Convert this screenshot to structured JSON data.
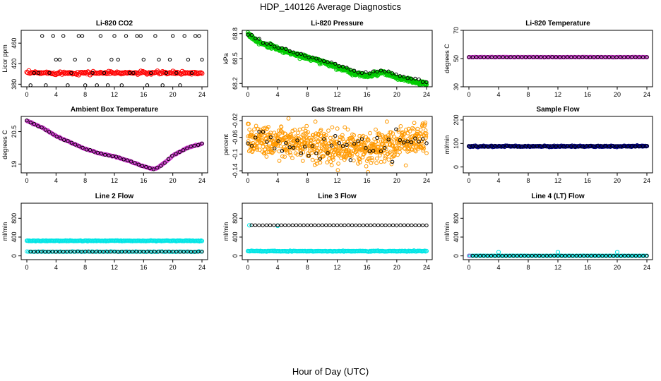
{
  "figure": {
    "title": "HDP_140126  Average Diagnostics",
    "xlabel": "Hour of Day (UTC)"
  },
  "colors": {
    "black": "#000000",
    "red": "#ff0000",
    "green": "#00cc00",
    "magenta": "#cc33cc",
    "orange": "#ff9900",
    "navy": "#000080",
    "cyan": "#00e5e5"
  },
  "chart_data": [
    {
      "type": "scatter",
      "title": "Li-820 CO2",
      "ylabel": "Licor ppm",
      "xlim": [
        0,
        24
      ],
      "ylim": [
        375,
        485
      ],
      "xticks": [
        0,
        4,
        8,
        12,
        16,
        20,
        24
      ],
      "yticks": [
        380,
        420,
        460
      ],
      "series": [
        {
          "color": "#ff0000",
          "pattern": "noisy",
          "x": [
            0,
            24
          ],
          "y": [
            402,
            402
          ],
          "n": 170,
          "noise": 1.5,
          "size": 3
        },
        {
          "color": "#000000",
          "pattern": "points",
          "x": [
            0.5,
            1.0,
            1.6,
            2.1,
            2.6,
            3.1,
            3.6,
            4.0,
            4.5,
            5.0,
            5.6,
            6.1,
            6.6,
            7.1,
            7.6,
            8.0,
            8.5,
            9.0,
            9.6,
            10.1,
            10.6,
            11.1,
            11.6,
            12.0,
            12.5,
            13.0,
            13.6,
            14.1,
            14.6,
            15.1,
            15.6,
            16.0,
            16.5,
            17.0,
            17.6,
            18.1,
            18.6,
            19.1,
            19.6,
            20.0,
            20.5,
            21.0,
            21.6,
            22.1,
            22.6,
            23.1,
            23.6,
            24.0
          ],
          "y": [
            378,
            402,
            402,
            474,
            378,
            402,
            474,
            428,
            428,
            474,
            378,
            402,
            428,
            474,
            474,
            378,
            428,
            402,
            378,
            474,
            402,
            378,
            428,
            474,
            428,
            378,
            474,
            402,
            402,
            474,
            474,
            428,
            378,
            402,
            474,
            428,
            378,
            402,
            428,
            474,
            402,
            378,
            474,
            428,
            402,
            474,
            474,
            428
          ],
          "size": 2.2
        }
      ]
    },
    {
      "type": "scatter",
      "title": "Li-820 Pressure",
      "ylabel": "kPa",
      "xlim": [
        0,
        24
      ],
      "ylim": [
        68.16,
        68.84
      ],
      "xticks": [
        0,
        4,
        8,
        12,
        16,
        20,
        24
      ],
      "yticks": [
        68.2,
        68.5,
        68.8
      ],
      "series": [
        {
          "color": "#00cc00",
          "pattern": "noisy",
          "x": [
            0,
            1,
            2,
            4,
            6,
            8,
            10,
            12,
            14,
            15,
            16,
            17,
            18,
            19,
            20,
            22,
            24
          ],
          "y": [
            68.8,
            68.73,
            68.68,
            68.62,
            68.56,
            68.51,
            68.46,
            68.4,
            68.33,
            68.31,
            68.29,
            68.31,
            68.33,
            68.31,
            68.27,
            68.23,
            68.19
          ],
          "n": 500,
          "noise": 0.012,
          "size": 2.6
        },
        {
          "color": "#000000",
          "pattern": "noisy",
          "x": [
            0,
            1,
            2,
            4,
            6,
            8,
            10,
            12,
            14,
            15,
            16,
            17,
            18,
            19,
            20,
            22,
            24
          ],
          "y": [
            68.8,
            68.74,
            68.7,
            68.64,
            68.58,
            68.53,
            68.48,
            68.42,
            68.36,
            68.33,
            68.32,
            68.34,
            68.35,
            68.33,
            68.3,
            68.26,
            68.22
          ],
          "n": 48,
          "noise": 0.008,
          "size": 2.2
        }
      ]
    },
    {
      "type": "scatter",
      "title": "Li-820 Temperature",
      "ylabel": "degrees C",
      "xlim": [
        0,
        24
      ],
      "ylim": [
        30,
        70
      ],
      "xticks": [
        0,
        4,
        8,
        12,
        16,
        20,
        24
      ],
      "yticks": [
        30,
        50,
        70
      ],
      "series": [
        {
          "color": "#cc33cc",
          "pattern": "noisy",
          "x": [
            0,
            24
          ],
          "y": [
            51,
            51
          ],
          "n": 160,
          "noise": 0.05,
          "size": 2.6
        },
        {
          "color": "#000000",
          "pattern": "noisy",
          "x": [
            0,
            24
          ],
          "y": [
            51,
            51
          ],
          "n": 48,
          "noise": 0.05,
          "size": 2.2
        }
      ]
    },
    {
      "type": "scatter",
      "title": "Ambient Box Temperature",
      "ylabel": "degrees C",
      "xlim": [
        0,
        24
      ],
      "ylim": [
        18.6,
        21.2
      ],
      "xticks": [
        0,
        4,
        8,
        12,
        16,
        20,
        24
      ],
      "yticks": [
        19.0,
        20.5
      ],
      "series": [
        {
          "color": "#cc33cc",
          "pattern": "noisy",
          "x": [
            0,
            2,
            4,
            6,
            8,
            10,
            12,
            14,
            16,
            17,
            17.5,
            18,
            19,
            20,
            22,
            24
          ],
          "y": [
            21.0,
            20.7,
            20.3,
            20.0,
            19.7,
            19.5,
            19.35,
            19.15,
            18.9,
            18.8,
            18.78,
            18.85,
            19.1,
            19.4,
            19.75,
            19.95
          ],
          "n": 200,
          "noise": 0.01,
          "size": 2.6
        },
        {
          "color": "#000000",
          "pattern": "noisy",
          "x": [
            0,
            2,
            4,
            6,
            8,
            10,
            12,
            14,
            16,
            17,
            17.5,
            18,
            19,
            20,
            22,
            24
          ],
          "y": [
            21.0,
            20.7,
            20.3,
            20.0,
            19.7,
            19.5,
            19.35,
            19.15,
            18.9,
            18.8,
            18.78,
            18.85,
            19.1,
            19.4,
            19.75,
            19.95
          ],
          "n": 48,
          "noise": 0.01,
          "size": 2.2
        }
      ]
    },
    {
      "type": "scatter",
      "title": "Gas Stream RH",
      "ylabel": "percent",
      "xlim": [
        0,
        24
      ],
      "ylim": [
        -0.145,
        -0.01
      ],
      "xticks": [
        0,
        4,
        8,
        12,
        16,
        20,
        24
      ],
      "yticks": [
        -0.14,
        -0.1,
        -0.06,
        -0.02
      ],
      "series": [
        {
          "color": "#ff9900",
          "pattern": "noisy",
          "x": [
            0,
            4,
            8,
            12,
            16,
            20,
            24
          ],
          "y": [
            -0.06,
            -0.07,
            -0.08,
            -0.085,
            -0.09,
            -0.075,
            -0.06
          ],
          "n": 700,
          "noise": 0.02,
          "size": 2.4
        },
        {
          "color": "#000000",
          "pattern": "noisy",
          "x": [
            0,
            4,
            8,
            12,
            16,
            20,
            24
          ],
          "y": [
            -0.07,
            -0.075,
            -0.085,
            -0.085,
            -0.085,
            -0.075,
            -0.065
          ],
          "n": 48,
          "noise": 0.015,
          "size": 2.2
        }
      ]
    },
    {
      "type": "scatter",
      "title": "Sample Flow",
      "ylabel": "ml/min",
      "xlim": [
        0,
        24
      ],
      "ylim": [
        -25,
        215
      ],
      "xticks": [
        0,
        4,
        8,
        12,
        16,
        20,
        24
      ],
      "yticks": [
        0,
        100,
        200
      ],
      "series": [
        {
          "color": "#000080",
          "pattern": "noisy",
          "x": [
            0,
            24
          ],
          "y": [
            88,
            88
          ],
          "n": 220,
          "noise": 1.2,
          "size": 2.6
        },
        {
          "color": "#000000",
          "pattern": "noisy",
          "x": [
            0,
            24
          ],
          "y": [
            88,
            88
          ],
          "n": 48,
          "noise": 0.8,
          "size": 2.2
        }
      ]
    },
    {
      "type": "scatter",
      "title": "Line 2 Flow",
      "ylabel": "ml/min",
      "xlim": [
        0,
        24
      ],
      "ylim": [
        -80,
        1120
      ],
      "xticks": [
        0,
        4,
        8,
        12,
        16,
        20,
        24
      ],
      "yticks": [
        0,
        400,
        800
      ],
      "series": [
        {
          "color": "#00e5e5",
          "pattern": "noisy",
          "x": [
            0,
            24
          ],
          "y": [
            320,
            320
          ],
          "n": 200,
          "noise": 4,
          "size": 2.6
        },
        {
          "color": "#00e5e5",
          "pattern": "noisy",
          "x": [
            0,
            24
          ],
          "y": [
            90,
            90
          ],
          "n": 120,
          "noise": 3,
          "size": 2.4
        },
        {
          "color": "#000000",
          "pattern": "noisy",
          "x": [
            0.5,
            24
          ],
          "y": [
            90,
            90
          ],
          "n": 48,
          "noise": 1,
          "size": 2.2
        }
      ]
    },
    {
      "type": "scatter",
      "title": "Line 3 Flow",
      "ylabel": "ml/min",
      "xlim": [
        0,
        24
      ],
      "ylim": [
        -80,
        1120
      ],
      "xticks": [
        0,
        4,
        8,
        12,
        16,
        20,
        24
      ],
      "yticks": [
        0,
        400,
        800
      ],
      "series": [
        {
          "color": "#00e5e5",
          "pattern": "noisy",
          "x": [
            0,
            24
          ],
          "y": [
            100,
            100
          ],
          "n": 200,
          "noise": 4,
          "size": 2.6
        },
        {
          "color": "#00e5e5",
          "pattern": "points",
          "x": [
            0.2,
            4.0
          ],
          "y": [
            650,
            640
          ],
          "size": 2.6
        },
        {
          "color": "#000000",
          "pattern": "noisy",
          "x": [
            0.5,
            24
          ],
          "y": [
            650,
            650
          ],
          "n": 48,
          "noise": 1,
          "size": 2.2
        }
      ]
    },
    {
      "type": "scatter",
      "title": "Line 4 (LT) Flow",
      "ylabel": "ml/min",
      "xlim": [
        0,
        24
      ],
      "ylim": [
        -80,
        1120
      ],
      "xticks": [
        0,
        4,
        8,
        12,
        16,
        20,
        24
      ],
      "yticks": [
        0,
        400,
        800
      ],
      "series": [
        {
          "color": "#00e5e5",
          "pattern": "noisy",
          "x": [
            0,
            24
          ],
          "y": [
            3,
            3
          ],
          "n": 140,
          "noise": 1,
          "size": 2.4
        },
        {
          "color": "#00e5e5",
          "pattern": "points",
          "x": [
            4.0,
            12.0,
            20.0
          ],
          "y": [
            80,
            80,
            80
          ],
          "size": 2.6
        },
        {
          "color": "#cc33cc",
          "pattern": "points",
          "x": [
            0.05
          ],
          "y": [
            3
          ],
          "size": 2.4
        },
        {
          "color": "#000000",
          "pattern": "noisy",
          "x": [
            0.5,
            24
          ],
          "y": [
            3,
            3
          ],
          "n": 48,
          "noise": 0.5,
          "size": 2.2
        }
      ]
    }
  ]
}
